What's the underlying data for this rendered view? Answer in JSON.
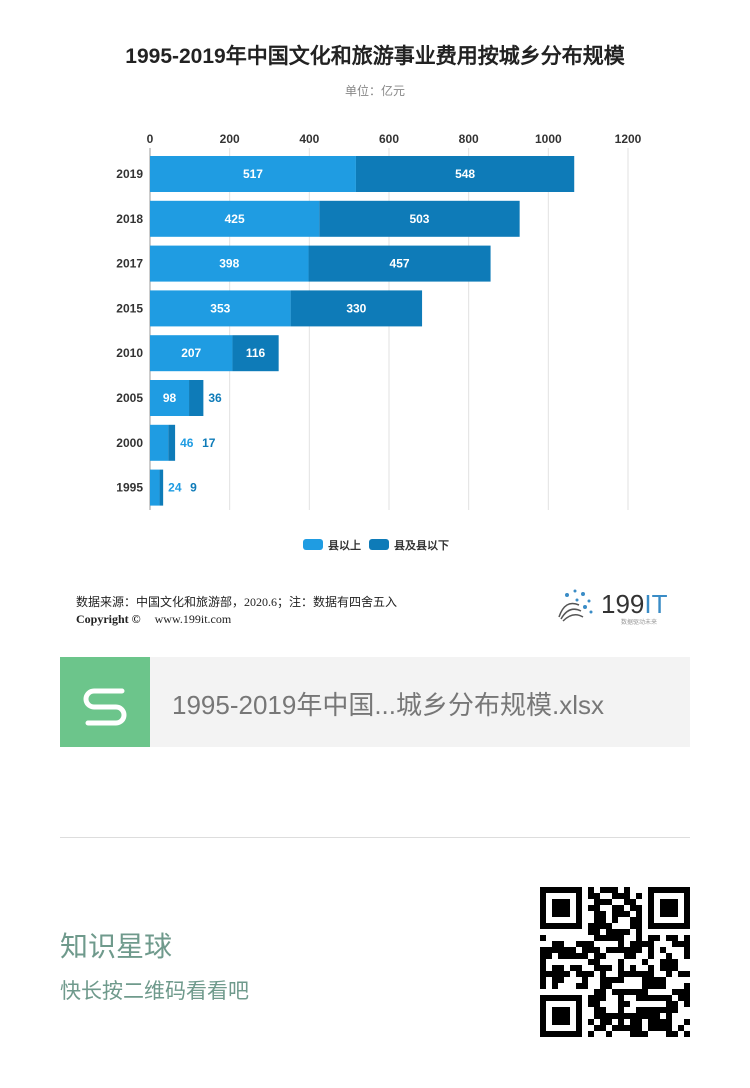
{
  "chart_data": {
    "type": "bar",
    "orientation": "horizontal",
    "stacked": true,
    "title": "1995-2019年中国文化和旅游事业费用按城乡分布规模",
    "subtitle": "单位：亿元",
    "categories": [
      "2019",
      "2018",
      "2017",
      "2015",
      "2010",
      "2005",
      "2000",
      "1995"
    ],
    "series": [
      {
        "name": "县以上",
        "color": "#1f9ce2",
        "values": [
          517,
          425,
          398,
          353,
          207,
          98,
          46,
          24
        ]
      },
      {
        "name": "县及县以下",
        "color": "#0e7bb8",
        "values": [
          548,
          503,
          457,
          330,
          116,
          36,
          17,
          9
        ]
      }
    ],
    "xlim": [
      0,
      1200
    ],
    "xticks": [
      0,
      200,
      400,
      600,
      800,
      1000,
      1200
    ],
    "grid": true,
    "legend": "bottom"
  },
  "footer": {
    "source": "数据来源：中国文化和旅游部，2020.6；注：数据有四舍五入",
    "copyright": "Copyright ©",
    "website": "www.199it.com",
    "logo_text": "199IT",
    "logo_tagline": "数据驱动未来"
  },
  "file": {
    "name": "1995-2019年中国...城乡分布规模.xlsx",
    "icon": "spreadsheet-s-icon"
  },
  "promo": {
    "title": "知识星球",
    "hint": "快长按二维码看看吧"
  }
}
